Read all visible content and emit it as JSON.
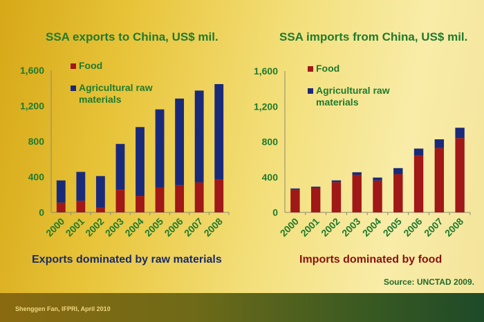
{
  "chart_data": [
    {
      "type": "bar",
      "stacked": true,
      "title": "SSA exports to China, US$ mil.",
      "subtitle": "Exports dominated by raw materials",
      "categories": [
        "2000",
        "2001",
        "2002",
        "2003",
        "2004",
        "2005",
        "2006",
        "2007",
        "2008"
      ],
      "series": [
        {
          "name": "Food",
          "color": "#a01818",
          "values": [
            110,
            130,
            52,
            254,
            186,
            280,
            305,
            337,
            370
          ]
        },
        {
          "name": "Agricultural raw materials",
          "color": "#1a2a7a",
          "values": [
            250,
            326,
            357,
            517,
            775,
            880,
            977,
            1035,
            1075
          ]
        }
      ],
      "ylim": [
        0,
        1600
      ],
      "yticks": [
        "0",
        "400",
        "800",
        "1,200",
        "1,600"
      ],
      "legend": "top-left"
    },
    {
      "type": "bar",
      "stacked": true,
      "title": "SSA imports from China, US$ mil.",
      "subtitle": "Imports dominated by food",
      "categories": [
        "2000",
        "2001",
        "2002",
        "2003",
        "2004",
        "2005",
        "2006",
        "2007",
        "2008"
      ],
      "series": [
        {
          "name": "Food",
          "color": "#a01818",
          "values": [
            255,
            276,
            341,
            425,
            360,
            433,
            643,
            727,
            840
          ]
        },
        {
          "name": "Agricultural raw materials",
          "color": "#1a2a7a",
          "values": [
            15,
            15,
            21,
            29,
            34,
            68,
            79,
            100,
            118
          ]
        }
      ],
      "ylim": [
        0,
        1600
      ],
      "yticks": [
        "0",
        "400",
        "800",
        "1,200",
        "1,600"
      ],
      "legend": "top-left"
    }
  ],
  "source": "Source: UNCTAD 2009.",
  "footer": "Shenggen Fan, IFPRI, April 2010"
}
